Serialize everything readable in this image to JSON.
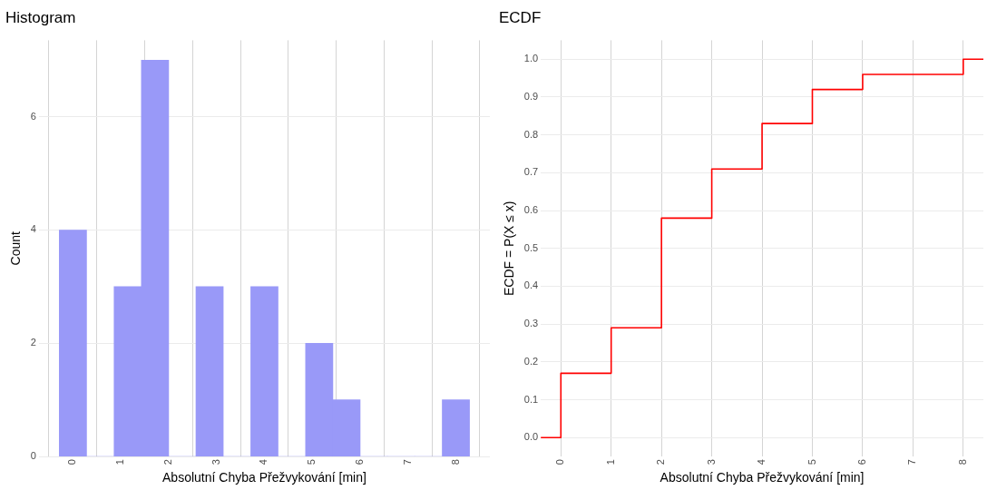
{
  "chart_data": [
    {
      "type": "histogram",
      "title": "Histogram",
      "xlabel": "Absolutní Chyba Přežvykování [min]",
      "ylabel": "Count",
      "color": "#9999f8",
      "bins": [
        -0.29,
        0.29,
        0.86,
        1.43,
        2.0,
        2.57,
        3.14,
        3.71,
        4.29,
        4.86,
        5.43,
        6.0,
        6.57,
        7.14,
        7.71,
        8.29
      ],
      "values": [
        4,
        0,
        3,
        7,
        0,
        3,
        0,
        3,
        0,
        2,
        1,
        0,
        0,
        0,
        1
      ],
      "xlim": [
        -0.71,
        8.71
      ],
      "ylim": [
        0,
        7.35
      ],
      "xticks": [
        0,
        1,
        2,
        3,
        4,
        5,
        6,
        7,
        8
      ],
      "yticks": [
        0,
        2,
        4,
        6
      ],
      "grid": true
    },
    {
      "type": "step",
      "title": "ECDF",
      "xlabel": "Absolutní Chyba Přežvykování [min]",
      "ylabel": "ECDF = P(X ≤ x)",
      "color": "#ff0000",
      "x": [
        -0.4,
        0,
        1,
        2,
        3,
        4,
        5,
        6,
        8,
        8.4
      ],
      "values": [
        0,
        0.17,
        0.29,
        0.58,
        0.71,
        0.83,
        0.92,
        0.96,
        1,
        1
      ],
      "xlim": [
        -0.4,
        8.4
      ],
      "ylim": [
        -0.05,
        1.05
      ],
      "xticks": [
        0,
        1,
        2,
        3,
        4,
        5,
        6,
        7,
        8
      ],
      "yticks": [
        {
          "value": 0,
          "label": "0.0"
        },
        0.1,
        0.2,
        0.3,
        0.4,
        0.5,
        0.6,
        0.7,
        0.8,
        0.9,
        {
          "value": 1,
          "label": "1.0"
        }
      ],
      "grid": true
    }
  ]
}
